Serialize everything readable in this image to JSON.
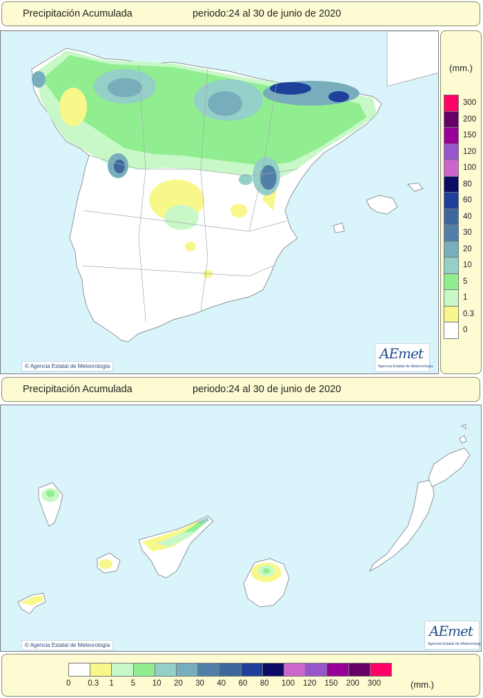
{
  "header_top": {
    "title": "Precipitación Acumulada",
    "period": "periodo:24 al 30 de junio de 2020"
  },
  "header_mid": {
    "title": "Precipitación Acumulada",
    "period": "periodo:24 al 30 de junio de 2020"
  },
  "copyright": "Agencia Estatal de Meteorología",
  "logo": {
    "name": "AEmet",
    "sub": "Agencia Estatal de Meteorología"
  },
  "legend": {
    "unit": "(mm.)",
    "classes": [
      {
        "label": "0",
        "color": "#ffffff"
      },
      {
        "label": "0.3",
        "color": "#f8f88a"
      },
      {
        "label": "1",
        "color": "#c8f8c8"
      },
      {
        "label": "5",
        "color": "#90ee90"
      },
      {
        "label": "10",
        "color": "#94cfc8"
      },
      {
        "label": "20",
        "color": "#78aebb"
      },
      {
        "label": "30",
        "color": "#527fa8"
      },
      {
        "label": "40",
        "color": "#3e679e"
      },
      {
        "label": "60",
        "color": "#1e409a"
      },
      {
        "label": "80",
        "color": "#0c0c66"
      },
      {
        "label": "100",
        "color": "#cc66cc"
      },
      {
        "label": "120",
        "color": "#9955cc"
      },
      {
        "label": "150",
        "color": "#990099"
      },
      {
        "label": "200",
        "color": "#660066"
      },
      {
        "label": "300",
        "color": "#ff0066"
      }
    ]
  },
  "colors": {
    "sea": "#d9f4fb",
    "land": "#ffffff",
    "border": "#9aa0a6"
  }
}
